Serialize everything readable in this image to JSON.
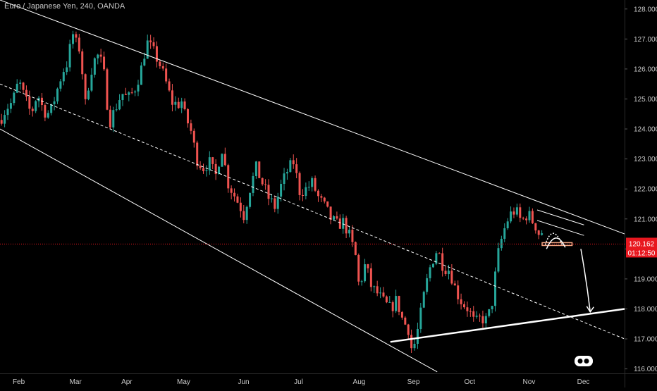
{
  "header": {
    "title": "Euro / Japanese Yen, 240, OANDA"
  },
  "price_badge": {
    "price": "120.162",
    "countdown": "01:12:50",
    "color": "#e8171f"
  },
  "colors": {
    "background": "#000000",
    "up_candle": "#26a69a",
    "down_candle": "#ef5350",
    "channel_line": "#ffffff",
    "price_line": "#e8171f",
    "axis_text": "#c9c9c9",
    "support_highlight": "#f4a582"
  },
  "chart_data": {
    "type": "candlestick",
    "title": "Euro / Japanese Yen, 240, OANDA",
    "y_axis": {
      "range": [
        115.85,
        128.3
      ],
      "ticks": [
        "128.000",
        "127.000",
        "126.000",
        "125.000",
        "124.000",
        "123.000",
        "122.000",
        "121.000",
        "120.000",
        "119.000",
        "118.000",
        "117.000",
        "116.000"
      ]
    },
    "x_axis": {
      "range": [
        0,
        100
      ],
      "ticks": [
        {
          "label": "Feb",
          "x": 3
        },
        {
          "label": "Mar",
          "x": 12.1
        },
        {
          "label": "Apr",
          "x": 20.3
        },
        {
          "label": "May",
          "x": 29.4
        },
        {
          "label": "Jun",
          "x": 39
        },
        {
          "label": "Jul",
          "x": 47.8
        },
        {
          "label": "Aug",
          "x": 57.5
        },
        {
          "label": "Sep",
          "x": 66.2
        },
        {
          "label": "Oct",
          "x": 75.2
        },
        {
          "label": "Nov",
          "x": 84.7
        },
        {
          "label": "Dec",
          "x": 93.4
        }
      ]
    },
    "price_path": [
      [
        0,
        124.3
      ],
      [
        1,
        124.7
      ],
      [
        2,
        124.9
      ],
      [
        3,
        125.6
      ],
      [
        4,
        125.0
      ],
      [
        5,
        124.5
      ],
      [
        6,
        125.2
      ],
      [
        7,
        124.6
      ],
      [
        8,
        124.5
      ],
      [
        9,
        125.2
      ],
      [
        10,
        125.9
      ],
      [
        11,
        126.3
      ],
      [
        11.5,
        127.3
      ],
      [
        12,
        126.9
      ],
      [
        13,
        126.6
      ],
      [
        13.5,
        124.6
      ],
      [
        14.5,
        125.9
      ],
      [
        15.5,
        126.5
      ],
      [
        16.5,
        126.1
      ],
      [
        17.5,
        124.2
      ],
      [
        18.5,
        124.7
      ],
      [
        19.5,
        125.2
      ],
      [
        20.5,
        125.0
      ],
      [
        21.5,
        125.3
      ],
      [
        22.5,
        125.9
      ],
      [
        23.5,
        126.9
      ],
      [
        24.5,
        126.6
      ],
      [
        25.5,
        126.2
      ],
      [
        26.5,
        125.6
      ],
      [
        27.5,
        124.9
      ],
      [
        28.5,
        124.8
      ],
      [
        29,
        125.0
      ],
      [
        29.5,
        124.5
      ],
      [
        30.5,
        124.0
      ],
      [
        31.5,
        123.0
      ],
      [
        32.5,
        122.7
      ],
      [
        33.5,
        122.9
      ],
      [
        34.5,
        122.4
      ],
      [
        35.5,
        123.4
      ],
      [
        36.5,
        122.2
      ],
      [
        37.5,
        121.8
      ],
      [
        38.5,
        121.4
      ],
      [
        39,
        121.1
      ],
      [
        40,
        122.0
      ],
      [
        41,
        122.7
      ],
      [
        42,
        122.2
      ],
      [
        43,
        121.7
      ],
      [
        44,
        121.4
      ],
      [
        45,
        122.1
      ],
      [
        46,
        122.6
      ],
      [
        47,
        122.9
      ],
      [
        48,
        121.9
      ],
      [
        49,
        122.0
      ],
      [
        50,
        122.2
      ],
      [
        51,
        121.7
      ],
      [
        52,
        121.4
      ],
      [
        53,
        121.0
      ],
      [
        54,
        120.8
      ],
      [
        55,
        120.9
      ],
      [
        56,
        120.4
      ],
      [
        57,
        119.7
      ],
      [
        57.5,
        118.7
      ],
      [
        58.5,
        119.5
      ],
      [
        59.5,
        118.7
      ],
      [
        60.5,
        118.5
      ],
      [
        61.5,
        118.2
      ],
      [
        62.5,
        118.0
      ],
      [
        63.5,
        118.3
      ],
      [
        64.5,
        117.6
      ],
      [
        65.5,
        117.3
      ],
      [
        66,
        116.5
      ],
      [
        67,
        117.4
      ],
      [
        68,
        118.6
      ],
      [
        69,
        119.5
      ],
      [
        70,
        120.0
      ],
      [
        71,
        119.4
      ],
      [
        72,
        119.3
      ],
      [
        73,
        118.6
      ],
      [
        74,
        118.2
      ],
      [
        75,
        118.0
      ],
      [
        76,
        117.5
      ],
      [
        77,
        117.7
      ],
      [
        78,
        117.6
      ],
      [
        79,
        118.4
      ],
      [
        79.5,
        119.6
      ],
      [
        80.5,
        120.5
      ],
      [
        81.5,
        121.1
      ],
      [
        82.5,
        121.3
      ],
      [
        83.5,
        120.9
      ],
      [
        84.5,
        121.2
      ],
      [
        85,
        121.0
      ],
      [
        85.7,
        120.8
      ],
      [
        86.3,
        120.5
      ],
      [
        87,
        120.6
      ]
    ],
    "overlays": [
      {
        "type": "trendline",
        "style": "solid",
        "from": [
          0,
          128.3
        ],
        "to": [
          100,
          120.5
        ]
      },
      {
        "type": "trendline",
        "style": "dashed",
        "from": [
          0,
          125.5
        ],
        "to": [
          100,
          117.0
        ]
      },
      {
        "type": "trendline",
        "style": "solid",
        "from": [
          0,
          124.0
        ],
        "to": [
          70,
          115.9
        ]
      },
      {
        "type": "trendline",
        "style": "solid_thick",
        "from": [
          62.5,
          116.9
        ],
        "to": [
          100,
          118.0
        ]
      },
      {
        "type": "trendline",
        "style": "solid",
        "from": [
          86,
          120.95
        ],
        "to": [
          93.5,
          120.45
        ]
      },
      {
        "type": "trendline",
        "style": "solid",
        "from": [
          86,
          121.3
        ],
        "to": [
          93.5,
          120.8
        ]
      },
      {
        "type": "horizontal",
        "style": "solid",
        "price": 120.162
      },
      {
        "type": "arrow",
        "from": [
          93,
          120.0
        ],
        "to": [
          94.5,
          117.9
        ]
      }
    ]
  }
}
